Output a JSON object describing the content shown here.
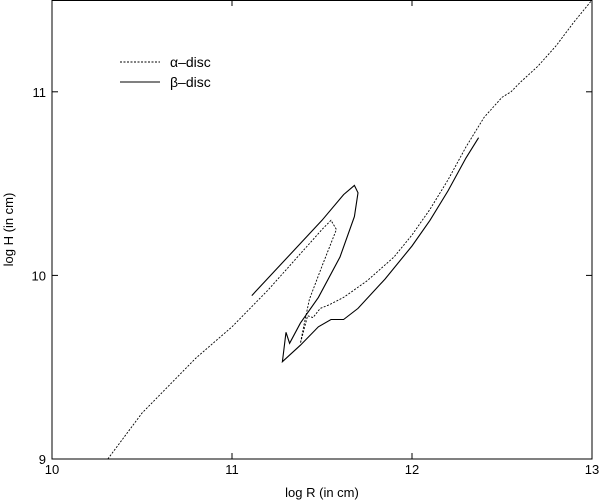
{
  "chart_data": {
    "type": "line",
    "xlabel": "log R (in cm)",
    "ylabel": "log H (in cm)",
    "xlim": [
      10,
      13
    ],
    "ylim": [
      9,
      11.5
    ],
    "xticks": [
      {
        "value": 10,
        "label": "10"
      },
      {
        "value": 11,
        "label": "11"
      },
      {
        "value": 12,
        "label": "12"
      },
      {
        "value": 13,
        "label": "13"
      }
    ],
    "yticks": [
      {
        "value": 9,
        "label": "9"
      },
      {
        "value": 10,
        "label": "10"
      },
      {
        "value": 11,
        "label": "11"
      }
    ],
    "legend_position": "top-left",
    "grid": false,
    "series": [
      {
        "name": "α–disc",
        "style": "dotted",
        "points": [
          [
            10.31,
            9.0
          ],
          [
            10.5,
            9.25
          ],
          [
            10.8,
            9.55
          ],
          [
            11.0,
            9.72
          ],
          [
            11.2,
            9.92
          ],
          [
            11.4,
            10.14
          ],
          [
            11.5,
            10.25
          ],
          [
            11.55,
            10.3
          ],
          [
            11.58,
            10.25
          ],
          [
            11.5,
            10.05
          ],
          [
            11.43,
            9.87
          ],
          [
            11.4,
            9.73
          ],
          [
            11.38,
            9.63
          ],
          [
            11.42,
            9.78
          ],
          [
            11.45,
            9.77
          ],
          [
            11.49,
            9.82
          ],
          [
            11.54,
            9.84
          ],
          [
            11.58,
            9.86
          ],
          [
            11.62,
            9.88
          ],
          [
            11.75,
            9.97
          ],
          [
            11.9,
            10.1
          ],
          [
            12.0,
            10.22
          ],
          [
            12.1,
            10.36
          ],
          [
            12.2,
            10.52
          ],
          [
            12.3,
            10.7
          ],
          [
            12.4,
            10.86
          ],
          [
            12.5,
            10.97
          ],
          [
            12.55,
            11.0
          ],
          [
            12.6,
            11.05
          ],
          [
            12.7,
            11.14
          ],
          [
            12.8,
            11.25
          ],
          [
            12.9,
            11.38
          ],
          [
            13.0,
            11.5
          ]
        ]
      },
      {
        "name": "β–disc",
        "style": "solid",
        "points": [
          [
            11.11,
            9.89
          ],
          [
            11.3,
            10.09
          ],
          [
            11.5,
            10.3
          ],
          [
            11.62,
            10.44
          ],
          [
            11.68,
            10.49
          ],
          [
            11.7,
            10.45
          ],
          [
            11.68,
            10.32
          ],
          [
            11.6,
            10.1
          ],
          [
            11.48,
            9.88
          ],
          [
            11.38,
            9.74
          ],
          [
            11.32,
            9.63
          ],
          [
            11.3,
            9.69
          ],
          [
            11.28,
            9.53
          ],
          [
            11.38,
            9.62
          ],
          [
            11.48,
            9.72
          ],
          [
            11.55,
            9.76
          ],
          [
            11.62,
            9.76
          ],
          [
            11.7,
            9.82
          ],
          [
            11.85,
            9.98
          ],
          [
            12.0,
            10.16
          ],
          [
            12.1,
            10.3
          ],
          [
            12.2,
            10.46
          ],
          [
            12.3,
            10.64
          ],
          [
            12.37,
            10.75
          ]
        ]
      }
    ]
  }
}
